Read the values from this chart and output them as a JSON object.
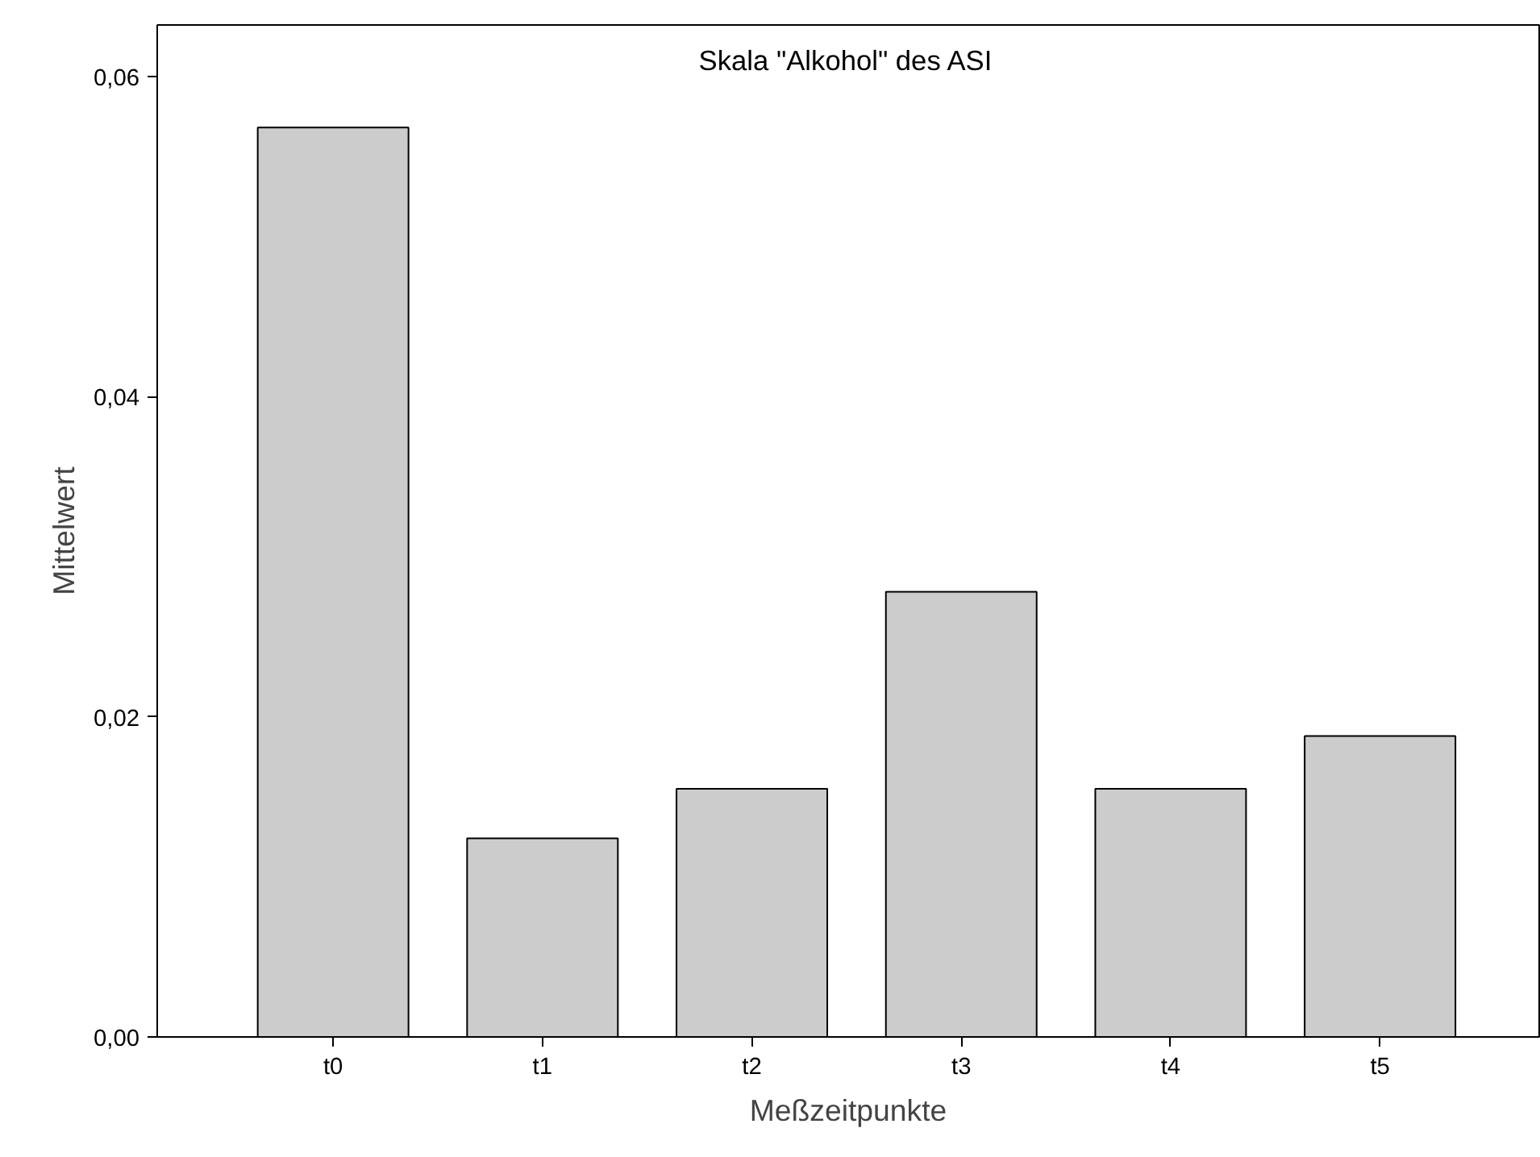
{
  "chart_data": {
    "type": "bar",
    "title": "Skala \"Alkohol\" des ASI",
    "xlabel": "Meßzeitpunkte",
    "ylabel": "Mittelwert",
    "categories": [
      "t0",
      "t1",
      "t2",
      "t3",
      "t4",
      "t5"
    ],
    "values": [
      0.0568,
      0.0124,
      0.0155,
      0.0278,
      0.0155,
      0.0188
    ],
    "color": "#cccccc",
    "ylim": [
      0,
      0.0632
    ],
    "yticks": [
      {
        "value": 0,
        "label": "0,00"
      },
      {
        "value": 0.02,
        "label": "0,02"
      },
      {
        "value": 0.04,
        "label": "0,04"
      },
      {
        "value": 0.06,
        "label": "0,06"
      }
    ],
    "grid": false
  }
}
